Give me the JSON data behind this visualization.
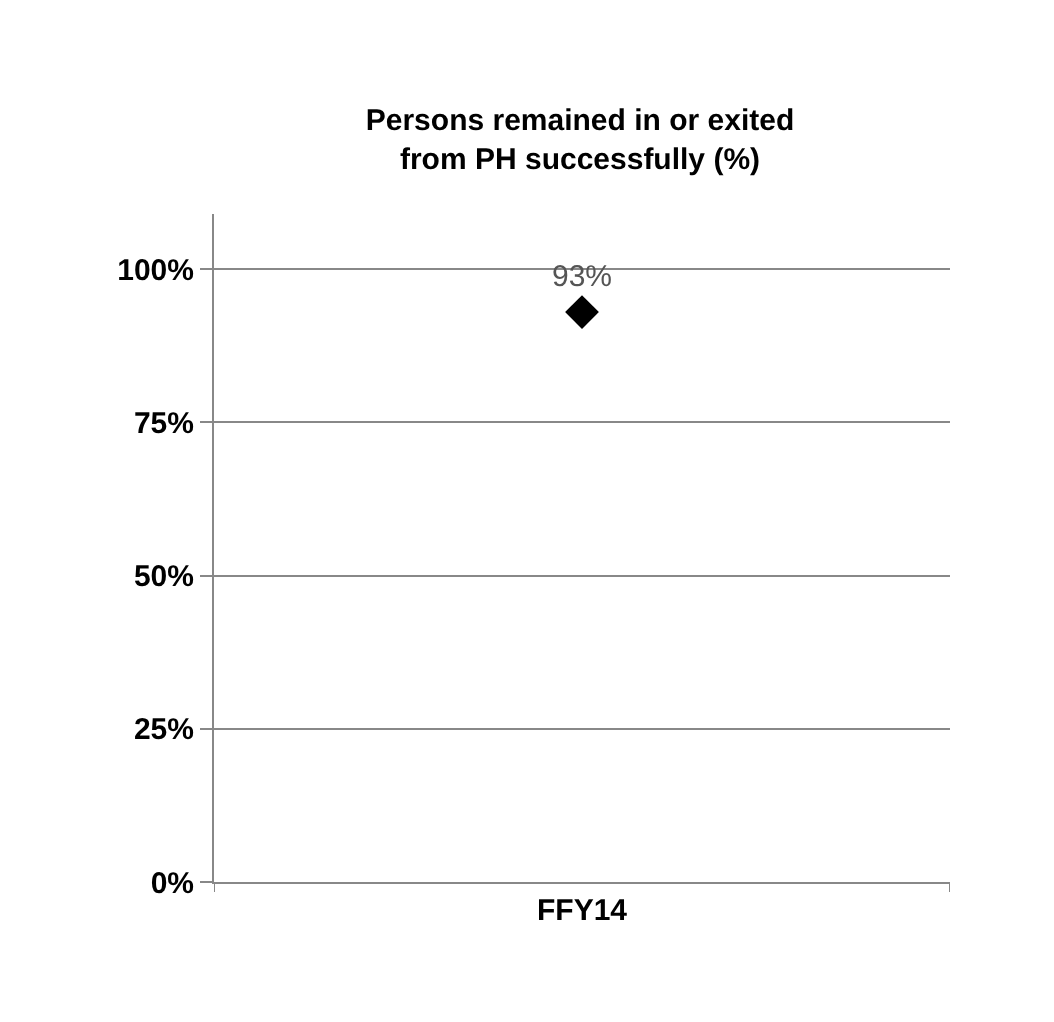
{
  "chart_data": {
    "type": "scatter",
    "title": "Persons remained in or exited\nfrom PH successfully (%)",
    "categories": [
      "FFY14"
    ],
    "series": [
      {
        "color": "#000000",
        "values": [
          93
        ],
        "value_labels": [
          "93%"
        ]
      }
    ],
    "marker": "diamond",
    "ylim": [
      0,
      109
    ],
    "yticks": [
      {
        "value": 0,
        "label": "0%"
      },
      {
        "value": 25,
        "label": "25%"
      },
      {
        "value": 50,
        "label": "50%"
      },
      {
        "value": 75,
        "label": "75%"
      },
      {
        "value": 100,
        "label": "100%"
      }
    ],
    "grid": "y",
    "legend": false
  }
}
